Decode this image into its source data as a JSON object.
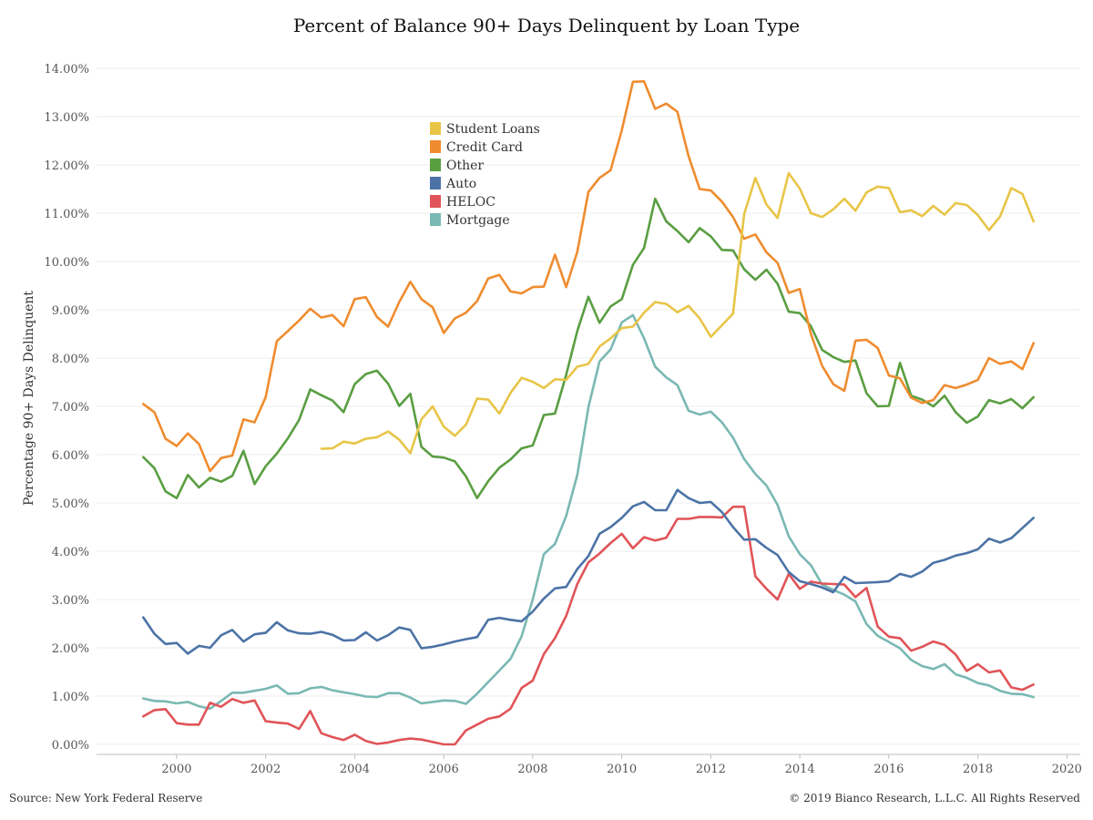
{
  "colors": {
    "Student Loans": "#e8c547",
    "Credit Card": "#ef8c2f",
    "Other": "#5a9e42",
    "Auto": "#4c73a6",
    "HELOC": "#e05458",
    "Mortgage": "#7ab8b3",
    "grid": "#ececec"
  },
  "footer": {
    "source": "Source: New York Federal Reserve",
    "copyright": "© 2019 Bianco Research, L.L.C. All Rights Reserved"
  },
  "chart_data": {
    "type": "line",
    "title": "Percent of Balance 90+ Days Delinquent by Loan Type",
    "xlabel": "",
    "ylabel": "Percentage 90+ Days Delinquent",
    "xlim": [
      1998.2,
      2020.3
    ],
    "ylim": [
      0,
      14
    ],
    "xticks": [
      2000,
      2002,
      2004,
      2006,
      2008,
      2010,
      2012,
      2014,
      2016,
      2018,
      2020
    ],
    "yticks": [
      0,
      1,
      2,
      3,
      4,
      5,
      6,
      7,
      8,
      9,
      10,
      11,
      12,
      13,
      14
    ],
    "ytick_format": "percent_2dp",
    "grid": "horizontal",
    "legend_position": "top-center",
    "x_start": 1999.25,
    "x_step": 0.25,
    "series": [
      {
        "name": "Student Loans",
        "start": 2003.25,
        "values": [
          6.12,
          6.13,
          6.27,
          6.23,
          6.33,
          6.36,
          6.48,
          6.31,
          6.03,
          6.73,
          7.0,
          6.58,
          6.39,
          6.62,
          7.16,
          7.14,
          6.85,
          7.28,
          7.59,
          7.51,
          7.38,
          7.56,
          7.55,
          7.82,
          7.88,
          8.24,
          8.41,
          8.62,
          8.65,
          8.94,
          9.16,
          9.12,
          8.95,
          9.08,
          8.82,
          8.44,
          8.68,
          8.92,
          10.98,
          11.73,
          11.18,
          10.9,
          11.83,
          11.51,
          11.0,
          10.92,
          11.08,
          11.3,
          11.05,
          11.43,
          11.55,
          11.52,
          11.02,
          11.06,
          10.94,
          11.15,
          10.97,
          11.21,
          11.17,
          10.96,
          10.65,
          10.93,
          11.52,
          11.4,
          10.83
        ]
      },
      {
        "name": "Credit Card",
        "start": 1999.25,
        "values": [
          7.05,
          6.88,
          6.33,
          6.18,
          6.44,
          6.22,
          5.66,
          5.93,
          5.98,
          6.73,
          6.67,
          7.19,
          8.35,
          8.56,
          8.78,
          9.02,
          8.84,
          8.89,
          8.66,
          9.22,
          9.26,
          8.85,
          8.65,
          9.16,
          9.58,
          9.22,
          9.05,
          8.52,
          8.82,
          8.94,
          9.18,
          9.65,
          9.72,
          9.38,
          9.34,
          9.47,
          9.48,
          10.14,
          9.47,
          10.2,
          11.44,
          11.73,
          11.89,
          12.72,
          13.72,
          13.73,
          13.16,
          13.27,
          13.1,
          12.18,
          11.5,
          11.47,
          11.24,
          10.92,
          10.47,
          10.56,
          10.19,
          9.97,
          9.35,
          9.43,
          8.5,
          7.84,
          7.46,
          7.32,
          8.36,
          8.38,
          8.21,
          7.64,
          7.58,
          7.18,
          7.07,
          7.13,
          7.44,
          7.38,
          7.45,
          7.55,
          8.0,
          7.88,
          7.93,
          7.77,
          8.31
        ]
      },
      {
        "name": "Other",
        "start": 1999.25,
        "values": [
          5.95,
          5.72,
          5.24,
          5.1,
          5.58,
          5.32,
          5.52,
          5.44,
          5.56,
          6.08,
          5.39,
          5.76,
          6.02,
          6.34,
          6.72,
          7.35,
          7.23,
          7.12,
          6.88,
          7.46,
          7.67,
          7.74,
          7.47,
          7.01,
          7.26,
          6.16,
          5.96,
          5.94,
          5.86,
          5.55,
          5.1,
          5.45,
          5.73,
          5.9,
          6.13,
          6.19,
          6.82,
          6.85,
          7.65,
          8.56,
          9.27,
          8.73,
          9.07,
          9.22,
          9.93,
          10.28,
          11.3,
          10.83,
          10.63,
          10.4,
          10.69,
          10.52,
          10.24,
          10.23,
          9.84,
          9.62,
          9.83,
          9.54,
          8.96,
          8.93,
          8.66,
          8.17,
          8.02,
          7.92,
          7.95,
          7.27,
          7.0,
          7.01,
          7.9,
          7.22,
          7.14,
          7.0,
          7.22,
          6.88,
          6.66,
          6.79,
          7.13,
          7.06,
          7.15,
          6.96,
          7.19
        ]
      },
      {
        "name": "Auto",
        "start": 1999.25,
        "values": [
          2.63,
          2.29,
          2.08,
          2.1,
          1.88,
          2.04,
          2.0,
          2.26,
          2.37,
          2.13,
          2.28,
          2.31,
          2.53,
          2.36,
          2.3,
          2.29,
          2.33,
          2.27,
          2.15,
          2.16,
          2.32,
          2.15,
          2.26,
          2.42,
          2.37,
          1.99,
          2.02,
          2.07,
          2.13,
          2.18,
          2.22,
          2.58,
          2.62,
          2.58,
          2.55,
          2.75,
          3.02,
          3.23,
          3.26,
          3.63,
          3.9,
          4.36,
          4.5,
          4.69,
          4.93,
          5.02,
          4.85,
          4.85,
          5.27,
          5.1,
          5.0,
          5.02,
          4.81,
          4.5,
          4.24,
          4.25,
          4.07,
          3.92,
          3.57,
          3.38,
          3.32,
          3.25,
          3.15,
          3.47,
          3.34,
          3.35,
          3.36,
          3.38,
          3.53,
          3.47,
          3.58,
          3.76,
          3.82,
          3.91,
          3.96,
          4.04,
          4.26,
          4.18,
          4.27,
          4.48,
          4.69
        ]
      },
      {
        "name": "HELOC",
        "start": 1999.25,
        "values": [
          0.58,
          0.71,
          0.73,
          0.44,
          0.41,
          0.41,
          0.86,
          0.78,
          0.94,
          0.86,
          0.91,
          0.48,
          0.45,
          0.43,
          0.32,
          0.69,
          0.23,
          0.15,
          0.09,
          0.2,
          0.07,
          0.01,
          0.04,
          0.09,
          0.12,
          0.1,
          0.05,
          0.0,
          0.0,
          0.29,
          0.41,
          0.53,
          0.58,
          0.74,
          1.17,
          1.32,
          1.87,
          2.2,
          2.66,
          3.32,
          3.77,
          3.95,
          4.17,
          4.36,
          4.06,
          4.29,
          4.22,
          4.28,
          4.67,
          4.67,
          4.71,
          4.71,
          4.7,
          4.92,
          4.92,
          3.48,
          3.22,
          3.0,
          3.53,
          3.22,
          3.37,
          3.33,
          3.32,
          3.31,
          3.05,
          3.24,
          2.44,
          2.23,
          2.2,
          1.94,
          2.02,
          2.13,
          2.06,
          1.86,
          1.52,
          1.66,
          1.49,
          1.53,
          1.18,
          1.13,
          1.24
        ]
      },
      {
        "name": "Mortgage",
        "start": 1999.25,
        "values": [
          0.95,
          0.9,
          0.89,
          0.85,
          0.88,
          0.79,
          0.74,
          0.9,
          1.07,
          1.07,
          1.11,
          1.15,
          1.22,
          1.05,
          1.06,
          1.16,
          1.19,
          1.12,
          1.08,
          1.04,
          0.99,
          0.98,
          1.06,
          1.06,
          0.97,
          0.85,
          0.88,
          0.91,
          0.9,
          0.84,
          1.05,
          1.29,
          1.53,
          1.77,
          2.24,
          3.0,
          3.94,
          4.15,
          4.73,
          5.58,
          6.98,
          7.93,
          8.18,
          8.74,
          8.89,
          8.41,
          7.82,
          7.6,
          7.44,
          6.91,
          6.83,
          6.89,
          6.67,
          6.35,
          5.91,
          5.6,
          5.36,
          4.96,
          4.31,
          3.94,
          3.71,
          3.31,
          3.2,
          3.1,
          2.96,
          2.49,
          2.25,
          2.12,
          1.99,
          1.75,
          1.62,
          1.56,
          1.66,
          1.45,
          1.38,
          1.27,
          1.22,
          1.11,
          1.05,
          1.04,
          0.98
        ]
      }
    ]
  }
}
